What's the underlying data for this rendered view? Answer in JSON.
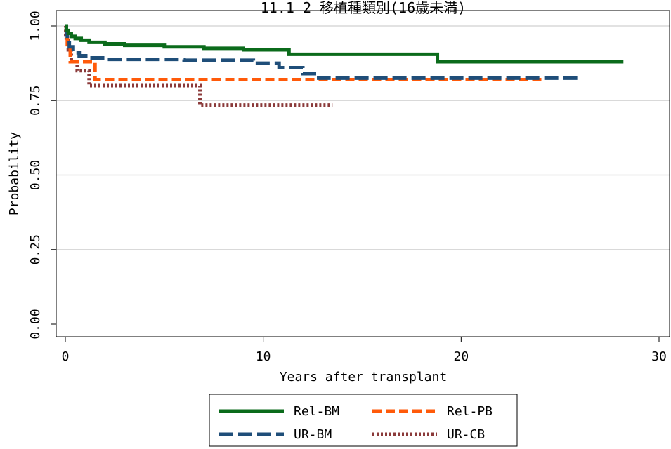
{
  "chart_data": {
    "type": "line",
    "step": true,
    "title": "11.1 2 移植種類別(16歳未満)",
    "xlabel": "Years after transplant",
    "ylabel": "Probability",
    "xlim": [
      0,
      30
    ],
    "ylim": [
      0,
      1
    ],
    "x_ticks": [
      "0",
      "10",
      "20",
      "30"
    ],
    "y_ticks": [
      "0.00",
      "0.25",
      "0.50",
      "0.75",
      "1.00"
    ],
    "grid": "horizontal",
    "legend_position": "bottom",
    "series": [
      {
        "name": "Rel-BM",
        "color": "#0b6b1b",
        "dash": "solid",
        "x": [
          0,
          0.05,
          0.15,
          0.3,
          0.5,
          0.8,
          1.2,
          2,
          3,
          5,
          7,
          9,
          11.3,
          18.8,
          28.2
        ],
        "y": [
          1.0,
          0.985,
          0.975,
          0.965,
          0.958,
          0.952,
          0.945,
          0.94,
          0.935,
          0.93,
          0.925,
          0.92,
          0.905,
          0.88,
          0.88
        ]
      },
      {
        "name": "Rel-PB",
        "color": "#ff5a0a",
        "dash": "dashed",
        "x": [
          0,
          0.05,
          0.1,
          0.25,
          1.5,
          24.2
        ],
        "y": [
          1.0,
          0.96,
          0.93,
          0.88,
          0.82,
          0.82
        ]
      },
      {
        "name": "UR-BM",
        "color": "#1f4e79",
        "dash": "longdash",
        "x": [
          0,
          0.05,
          0.1,
          0.2,
          0.4,
          0.7,
          1.2,
          2.2,
          6,
          9.5,
          10.8,
          12,
          12.8,
          25.9
        ],
        "y": [
          1.0,
          0.97,
          0.95,
          0.93,
          0.91,
          0.9,
          0.893,
          0.888,
          0.885,
          0.875,
          0.86,
          0.84,
          0.825,
          0.825
        ]
      },
      {
        "name": "UR-CB",
        "color": "#8b3a3a",
        "dash": "dotted",
        "x": [
          0,
          0.02,
          0.05,
          0.15,
          0.3,
          0.6,
          1.2,
          6.5,
          6.8,
          13.5
        ],
        "y": [
          1.0,
          0.97,
          0.95,
          0.92,
          0.88,
          0.85,
          0.8,
          0.8,
          0.735,
          0.735
        ]
      }
    ]
  }
}
